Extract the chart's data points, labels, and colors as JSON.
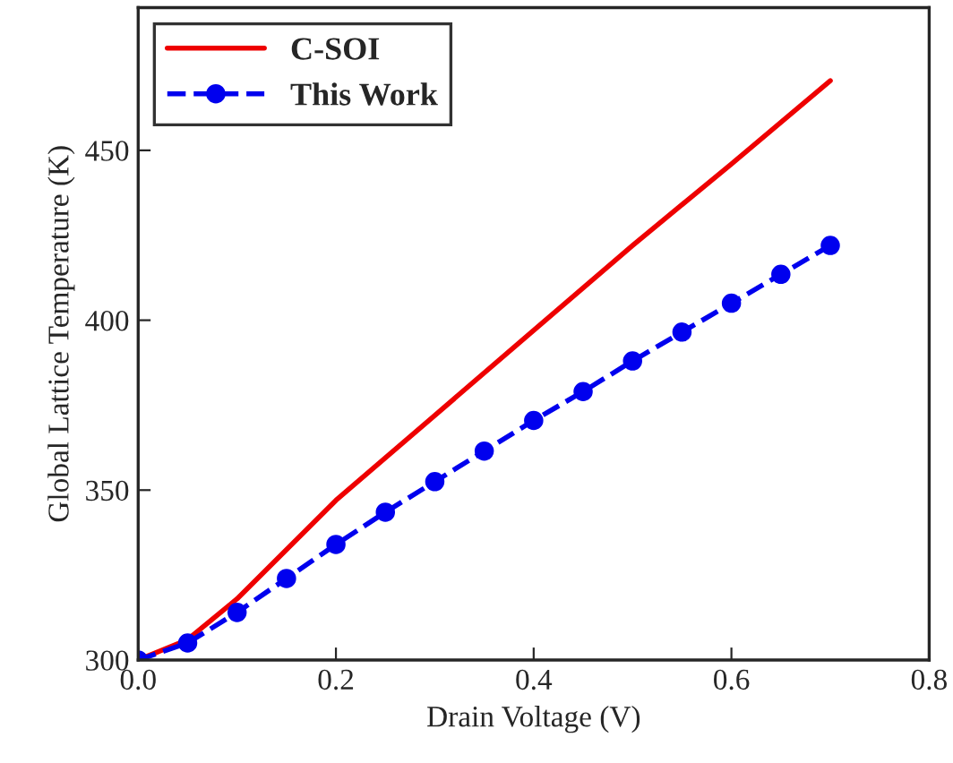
{
  "chart_data": {
    "type": "line",
    "xlabel": "Drain Voltage (V)",
    "ylabel": "Global Lattice Temperature (K)",
    "xlim": [
      0,
      0.8
    ],
    "ylim": [
      300,
      492
    ],
    "xticks": [
      {
        "value": 0,
        "label": "0.0"
      },
      0.2,
      0.4,
      0.6,
      0.8
    ],
    "yticks": [
      300,
      350,
      400,
      450
    ],
    "legend": "top left",
    "grid": false,
    "series": [
      {
        "name": "C-SOI",
        "color": "#ee0000",
        "marker": "none",
        "line_style": "solid",
        "x": [
          0,
          0.05,
          0.1,
          0.2,
          0.3,
          0.4,
          0.5,
          0.6,
          0.7
        ],
        "values": [
          300,
          306,
          318,
          347,
          372,
          397,
          422,
          446,
          470.5
        ]
      },
      {
        "name": "This Work",
        "color": "#0000ee",
        "marker": "circle",
        "line_style": "dashed",
        "x": [
          0,
          0.05,
          0.1,
          0.15,
          0.2,
          0.25,
          0.3,
          0.35,
          0.4,
          0.45,
          0.5,
          0.55,
          0.6,
          0.65,
          0.7
        ],
        "values": [
          300,
          305,
          314,
          324,
          334,
          343.5,
          352.5,
          361.5,
          370.5,
          379,
          388,
          396.5,
          405,
          413.5,
          422
        ]
      }
    ]
  }
}
